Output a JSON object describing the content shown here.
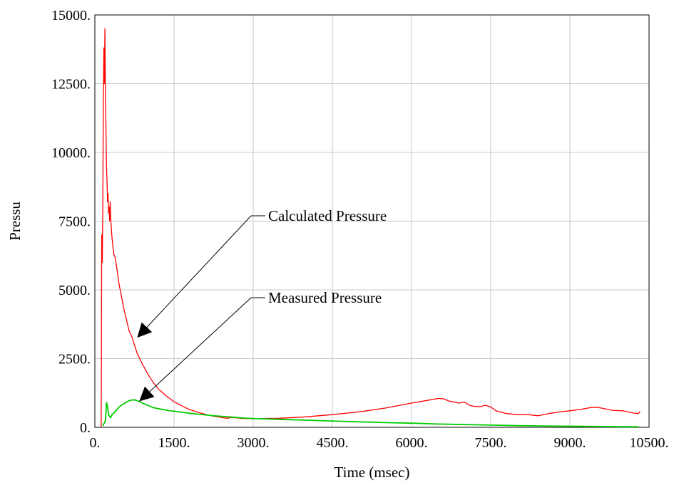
{
  "chart_data": {
    "type": "line",
    "xlabel": "Time (msec)",
    "ylabel": "Pressu",
    "xlim": [
      0,
      10500
    ],
    "ylim": [
      0,
      15000
    ],
    "x_ticks": [
      "0.",
      "1500.",
      "3000.",
      "4500.",
      "6000.",
      "7500.",
      "9000.",
      "10500."
    ],
    "y_ticks": [
      "0.",
      "2500.",
      "5000.",
      "7500.",
      "10000.",
      "12500.",
      "15000."
    ],
    "grid": true,
    "series": [
      {
        "name": "Calculated Pressure",
        "color": "#ff0000",
        "x": [
          120,
          130,
          140,
          150,
          160,
          170,
          180,
          190,
          200,
          210,
          220,
          230,
          240,
          250,
          260,
          270,
          280,
          290,
          300,
          320,
          340,
          360,
          380,
          400,
          430,
          460,
          500,
          550,
          600,
          650,
          700,
          750,
          800,
          900,
          1000,
          1100,
          1200,
          1350,
          1500,
          1650,
          1800,
          2000,
          2200,
          2400,
          2500,
          2600,
          2800,
          3000,
          3200,
          3500,
          4000,
          4500,
          5000,
          5500,
          6000,
          6300,
          6500,
          6600,
          6700,
          6900,
          7000,
          7100,
          7200,
          7300,
          7400,
          7500,
          7600,
          7800,
          8000,
          8200,
          8400,
          8600,
          8800,
          9000,
          9200,
          9400,
          9500,
          9600,
          9800,
          10000,
          10200,
          10300,
          10330
        ],
        "y": [
          0,
          7000,
          6000,
          7800,
          11500,
          13800,
          12500,
          14500,
          12000,
          11000,
          9500,
          9000,
          8200,
          8500,
          7800,
          8000,
          7500,
          8200,
          7600,
          7000,
          6600,
          6300,
          6200,
          6000,
          5600,
          5200,
          4800,
          4300,
          3900,
          3500,
          3300,
          3000,
          2700,
          2300,
          1950,
          1650,
          1400,
          1150,
          930,
          780,
          640,
          520,
          420,
          360,
          330,
          360,
          320,
          310,
          320,
          330,
          380,
          460,
          560,
          700,
          880,
          980,
          1050,
          1040,
          960,
          880,
          920,
          800,
          760,
          750,
          800,
          740,
          600,
          500,
          460,
          460,
          420,
          500,
          560,
          600,
          650,
          720,
          730,
          700,
          620,
          600,
          520,
          500,
          580
        ]
      },
      {
        "name": "Measured Pressure",
        "color": "#00cc00",
        "x": [
          150,
          160,
          180,
          200,
          220,
          240,
          260,
          280,
          300,
          320,
          350,
          400,
          450,
          500,
          550,
          600,
          650,
          700,
          750,
          800,
          850,
          900,
          1000,
          1100,
          1200,
          1400,
          1600,
          1800,
          2000,
          2200,
          2400,
          2600,
          2800,
          3000,
          3500,
          4000,
          4500,
          5000,
          5500,
          6000,
          6500,
          7000,
          7500,
          8000,
          8500,
          9000,
          9500,
          10000,
          10300
        ],
        "y": [
          50,
          100,
          150,
          250,
          900,
          750,
          450,
          400,
          350,
          450,
          500,
          600,
          720,
          800,
          860,
          920,
          970,
          990,
          1000,
          970,
          930,
          880,
          800,
          720,
          680,
          610,
          560,
          510,
          470,
          430,
          400,
          370,
          340,
          320,
          290,
          260,
          230,
          200,
          170,
          150,
          120,
          100,
          80,
          60,
          50,
          40,
          30,
          20,
          20
        ]
      }
    ],
    "annotations": [
      {
        "text": "Calculated Pressure",
        "series": 0,
        "x": 820,
        "y": 3300
      },
      {
        "text": "Measured Pressure",
        "series": 1,
        "x": 860,
        "y": 980
      }
    ]
  }
}
